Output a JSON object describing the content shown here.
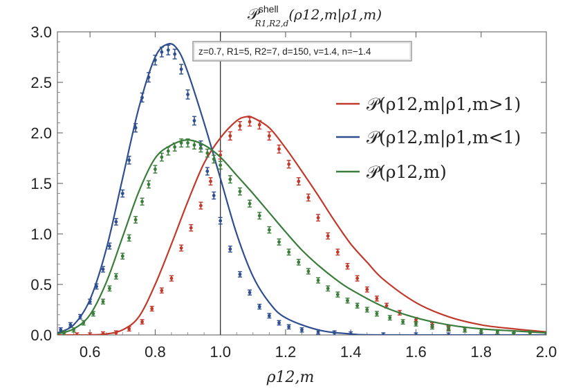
{
  "chart_data": {
    "type": "line",
    "title": "𝒫shellR1,R2,d(ρ12,m|ρ1,m)",
    "title_parts": {
      "main": "𝒫",
      "sup": "shell",
      "sub": "R1,R2,d",
      "tail": "(ρ12,m|ρ1,m)"
    },
    "xlabel": "ρ12,m",
    "ylabel": "",
    "xlim": [
      0.5,
      2.0
    ],
    "ylim": [
      0,
      3.0
    ],
    "x_ticks": [
      "0.6",
      "0.8",
      "1.0",
      "1.2",
      "1.4",
      "1.6",
      "1.8",
      "2.0"
    ],
    "y_ticks": [
      "0.0",
      "0.5",
      "1.0",
      "1.5",
      "2.0",
      "2.5",
      "3.0"
    ],
    "grid": false,
    "vertical_reference_line": 1.0,
    "legend_position": "right",
    "annotation": "z=0.7, R1=5, R2=7, d=150, v=1.4, n=−1.4",
    "series": [
      {
        "name": "𝒫(ρ12,m|ρ1,m>1)",
        "color": "#c0392b",
        "curve": [
          [
            0.5,
            0.0
          ],
          [
            0.55,
            0.0
          ],
          [
            0.6,
            0.0
          ],
          [
            0.65,
            0.01
          ],
          [
            0.7,
            0.05
          ],
          [
            0.75,
            0.18
          ],
          [
            0.8,
            0.5
          ],
          [
            0.85,
            0.9
          ],
          [
            0.9,
            1.32
          ],
          [
            0.95,
            1.7
          ],
          [
            1.0,
            1.95
          ],
          [
            1.05,
            2.12
          ],
          [
            1.08,
            2.16
          ],
          [
            1.1,
            2.15
          ],
          [
            1.15,
            2.05
          ],
          [
            1.2,
            1.85
          ],
          [
            1.25,
            1.62
          ],
          [
            1.3,
            1.38
          ],
          [
            1.35,
            1.13
          ],
          [
            1.4,
            0.9
          ],
          [
            1.45,
            0.72
          ],
          [
            1.5,
            0.55
          ],
          [
            1.6,
            0.32
          ],
          [
            1.7,
            0.18
          ],
          [
            1.8,
            0.1
          ],
          [
            1.9,
            0.06
          ],
          [
            2.0,
            0.03
          ]
        ],
        "points": [
          [
            0.52,
            0.0
          ],
          [
            0.56,
            0.0
          ],
          [
            0.6,
            0.0
          ],
          [
            0.64,
            0.01
          ],
          [
            0.68,
            0.02
          ],
          [
            0.72,
            0.06
          ],
          [
            0.76,
            0.13
          ],
          [
            0.79,
            0.26
          ],
          [
            0.82,
            0.44
          ],
          [
            0.85,
            0.56
          ],
          [
            0.88,
            0.86
          ],
          [
            0.91,
            1.06
          ],
          [
            0.94,
            1.28
          ],
          [
            0.97,
            1.52
          ],
          [
            1.0,
            1.78
          ],
          [
            1.03,
            1.97
          ],
          [
            1.06,
            2.07
          ],
          [
            1.09,
            2.11
          ],
          [
            1.12,
            2.08
          ],
          [
            1.15,
            1.97
          ],
          [
            1.18,
            1.84
          ],
          [
            1.21,
            1.69
          ],
          [
            1.24,
            1.52
          ],
          [
            1.27,
            1.36
          ],
          [
            1.3,
            1.16
          ],
          [
            1.33,
            0.98
          ],
          [
            1.36,
            0.82
          ],
          [
            1.39,
            0.68
          ],
          [
            1.42,
            0.56
          ],
          [
            1.45,
            0.45
          ],
          [
            1.48,
            0.36
          ],
          [
            1.51,
            0.29
          ],
          [
            1.55,
            0.22
          ],
          [
            1.6,
            0.15
          ],
          [
            1.65,
            0.1
          ],
          [
            1.7,
            0.07
          ],
          [
            1.75,
            0.05
          ],
          [
            1.8,
            0.04
          ],
          [
            1.85,
            0.03
          ],
          [
            1.9,
            0.02
          ],
          [
            1.95,
            0.02
          ],
          [
            2.0,
            0.01
          ]
        ]
      },
      {
        "name": "𝒫(ρ12,m|ρ1,m<1)",
        "color": "#2e4e8f",
        "curve": [
          [
            0.5,
            0.02
          ],
          [
            0.55,
            0.1
          ],
          [
            0.6,
            0.35
          ],
          [
            0.65,
            0.85
          ],
          [
            0.7,
            1.55
          ],
          [
            0.75,
            2.25
          ],
          [
            0.8,
            2.75
          ],
          [
            0.84,
            2.88
          ],
          [
            0.87,
            2.82
          ],
          [
            0.9,
            2.6
          ],
          [
            0.95,
            2.1
          ],
          [
            1.0,
            1.55
          ],
          [
            1.05,
            1.0
          ],
          [
            1.1,
            0.58
          ],
          [
            1.15,
            0.32
          ],
          [
            1.2,
            0.17
          ],
          [
            1.3,
            0.05
          ],
          [
            1.4,
            0.01
          ],
          [
            1.5,
            0.0
          ],
          [
            2.0,
            0.0
          ]
        ],
        "points": [
          [
            0.51,
            0.05
          ],
          [
            0.54,
            0.1
          ],
          [
            0.57,
            0.18
          ],
          [
            0.6,
            0.33
          ],
          [
            0.62,
            0.48
          ],
          [
            0.64,
            0.65
          ],
          [
            0.66,
            0.88
          ],
          [
            0.68,
            1.12
          ],
          [
            0.7,
            1.4
          ],
          [
            0.72,
            1.73
          ],
          [
            0.74,
            2.05
          ],
          [
            0.76,
            2.35
          ],
          [
            0.78,
            2.55
          ],
          [
            0.8,
            2.72
          ],
          [
            0.82,
            2.8
          ],
          [
            0.84,
            2.82
          ],
          [
            0.86,
            2.78
          ],
          [
            0.88,
            2.63
          ],
          [
            0.9,
            2.38
          ],
          [
            0.92,
            2.12
          ],
          [
            0.94,
            1.88
          ],
          [
            0.96,
            1.62
          ],
          [
            0.98,
            1.38
          ],
          [
            1.0,
            1.13
          ],
          [
            1.03,
            0.85
          ],
          [
            1.06,
            0.6
          ],
          [
            1.09,
            0.42
          ],
          [
            1.12,
            0.28
          ],
          [
            1.15,
            0.19
          ],
          [
            1.18,
            0.12
          ],
          [
            1.21,
            0.08
          ],
          [
            1.25,
            0.05
          ],
          [
            1.3,
            0.03
          ],
          [
            1.35,
            0.02
          ],
          [
            1.4,
            0.01
          ],
          [
            1.5,
            0.0
          ],
          [
            1.6,
            0.0
          ],
          [
            1.7,
            0.0
          ],
          [
            1.8,
            0.0
          ],
          [
            1.9,
            0.0
          ],
          [
            2.0,
            0.0
          ]
        ]
      },
      {
        "name": "𝒫(ρ12,m)",
        "color": "#3a7d3a",
        "curve": [
          [
            0.5,
            0.01
          ],
          [
            0.55,
            0.06
          ],
          [
            0.6,
            0.2
          ],
          [
            0.65,
            0.52
          ],
          [
            0.7,
            0.97
          ],
          [
            0.75,
            1.42
          ],
          [
            0.8,
            1.75
          ],
          [
            0.85,
            1.88
          ],
          [
            0.9,
            1.93
          ],
          [
            0.95,
            1.88
          ],
          [
            1.0,
            1.76
          ],
          [
            1.05,
            1.58
          ],
          [
            1.1,
            1.4
          ],
          [
            1.15,
            1.21
          ],
          [
            1.2,
            1.02
          ],
          [
            1.25,
            0.84
          ],
          [
            1.3,
            0.69
          ],
          [
            1.35,
            0.56
          ],
          [
            1.4,
            0.45
          ],
          [
            1.5,
            0.28
          ],
          [
            1.6,
            0.17
          ],
          [
            1.7,
            0.1
          ],
          [
            1.8,
            0.06
          ],
          [
            1.9,
            0.04
          ],
          [
            2.0,
            0.02
          ]
        ],
        "points": [
          [
            0.52,
            0.02
          ],
          [
            0.55,
            0.05
          ],
          [
            0.58,
            0.12
          ],
          [
            0.61,
            0.21
          ],
          [
            0.64,
            0.33
          ],
          [
            0.66,
            0.46
          ],
          [
            0.68,
            0.58
          ],
          [
            0.7,
            0.78
          ],
          [
            0.72,
            0.96
          ],
          [
            0.74,
            1.14
          ],
          [
            0.76,
            1.32
          ],
          [
            0.78,
            1.49
          ],
          [
            0.8,
            1.64
          ],
          [
            0.82,
            1.76
          ],
          [
            0.84,
            1.82
          ],
          [
            0.86,
            1.86
          ],
          [
            0.88,
            1.9
          ],
          [
            0.9,
            1.9
          ],
          [
            0.92,
            1.88
          ],
          [
            0.94,
            1.85
          ],
          [
            0.96,
            1.8
          ],
          [
            0.98,
            1.74
          ],
          [
            1.0,
            1.68
          ],
          [
            1.03,
            1.54
          ],
          [
            1.06,
            1.42
          ],
          [
            1.09,
            1.3
          ],
          [
            1.12,
            1.18
          ],
          [
            1.15,
            1.04
          ],
          [
            1.18,
            0.92
          ],
          [
            1.21,
            0.82
          ],
          [
            1.24,
            0.72
          ],
          [
            1.27,
            0.63
          ],
          [
            1.3,
            0.54
          ],
          [
            1.33,
            0.46
          ],
          [
            1.36,
            0.4
          ],
          [
            1.39,
            0.34
          ],
          [
            1.42,
            0.29
          ],
          [
            1.45,
            0.25
          ],
          [
            1.48,
            0.21
          ],
          [
            1.52,
            0.17
          ],
          [
            1.56,
            0.13
          ],
          [
            1.6,
            0.11
          ],
          [
            1.65,
            0.08
          ],
          [
            1.7,
            0.06
          ],
          [
            1.75,
            0.05
          ],
          [
            1.8,
            0.04
          ],
          [
            1.85,
            0.03
          ],
          [
            1.9,
            0.02
          ],
          [
            1.95,
            0.02
          ],
          [
            2.0,
            0.01
          ]
        ]
      }
    ]
  }
}
